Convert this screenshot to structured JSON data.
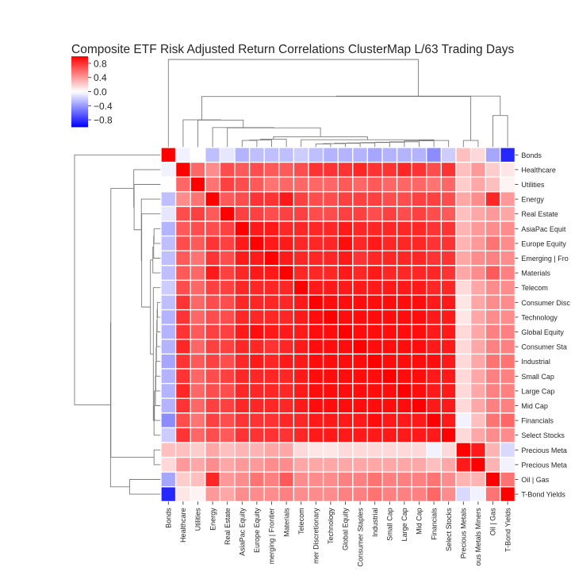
{
  "chart_data": {
    "type": "heatmap",
    "title": "Composite ETF Risk Adjusted Return Correlations ClusterMap L/63 Trading Days",
    "labels": [
      "Bonds",
      "Healthcare",
      "Utilities",
      "Energy",
      "Real Estate",
      "AsiaPac Equity",
      "Europe Equity",
      "Emerging | Frontier",
      "Materials",
      "Telecom",
      "Consumer Discretionary",
      "Technology",
      "Global Equity",
      "Consumer Staples",
      "Industrial",
      "Small Cap",
      "Large Cap",
      "Mid Cap",
      "Financials",
      "Select Stocks",
      "Precious Metals",
      "Precious Metals Miners",
      "Oil | Gas",
      "T-Bond Yields"
    ],
    "row_labels_visible": [
      "Bonds",
      "Healthcare",
      "Utilities",
      "Energy",
      "Real Estate",
      "AsiaPac Equit",
      "Europe Equity",
      "Emerging | Fro",
      "Materials",
      "Telecom",
      "Consumer Disc",
      "Technology",
      "Global Equity",
      "Consumer Sta",
      "Industrial",
      "Small Cap",
      "Large Cap",
      "Mid Cap",
      "Financials",
      "Select Stocks",
      "Precious Meta",
      "Precious Meta",
      "Oil | Gas",
      "T-Bond Yields"
    ],
    "col_labels_visible": [
      "Bonds",
      "Healthcare",
      "Utilities",
      "Energy",
      "Real Estate",
      "AsiaPac Equity",
      "Europe Equity",
      "merging | Frontier",
      "Materials",
      "Telecom",
      "mer Discretionary",
      "Technology",
      "Global Equity",
      "Consumer Staples",
      "Industrial",
      "Small Cap",
      "Large Cap",
      "Mid Cap",
      "Financials",
      "Select Stocks",
      "Precious Metals",
      "ous Metals Miners",
      "Oil | Gas",
      "T-Bond Yields"
    ],
    "matrix": [
      [
        1.0,
        -0.05,
        0.0,
        -0.25,
        -0.1,
        -0.3,
        -0.25,
        -0.25,
        -0.25,
        -0.2,
        -0.25,
        -0.3,
        -0.3,
        -0.3,
        -0.35,
        -0.3,
        -0.3,
        -0.3,
        -0.45,
        -0.2,
        0.25,
        0.15,
        -0.35,
        -0.85
      ],
      [
        -0.05,
        1.0,
        0.6,
        0.45,
        0.7,
        0.65,
        0.7,
        0.65,
        0.65,
        0.7,
        0.8,
        0.8,
        0.8,
        0.85,
        0.8,
        0.8,
        0.85,
        0.8,
        0.7,
        0.8,
        0.25,
        0.4,
        0.2,
        0.1
      ],
      [
        0.0,
        0.6,
        1.0,
        0.55,
        0.75,
        0.7,
        0.65,
        0.55,
        0.6,
        0.6,
        0.6,
        0.6,
        0.65,
        0.6,
        0.65,
        0.6,
        0.6,
        0.6,
        0.55,
        0.6,
        0.2,
        0.35,
        0.25,
        0.05
      ],
      [
        -0.25,
        0.45,
        0.55,
        1.0,
        0.65,
        0.7,
        0.8,
        0.8,
        0.9,
        0.75,
        0.7,
        0.7,
        0.75,
        0.75,
        0.75,
        0.7,
        0.7,
        0.75,
        0.75,
        0.7,
        0.35,
        0.45,
        0.85,
        0.4
      ],
      [
        -0.1,
        0.7,
        0.75,
        0.65,
        1.0,
        0.75,
        0.75,
        0.7,
        0.75,
        0.75,
        0.7,
        0.7,
        0.75,
        0.75,
        0.7,
        0.75,
        0.7,
        0.75,
        0.7,
        0.65,
        0.25,
        0.35,
        0.4,
        0.35
      ],
      [
        -0.3,
        0.65,
        0.7,
        0.7,
        0.75,
        1.0,
        0.9,
        0.9,
        0.85,
        0.85,
        0.85,
        0.85,
        0.9,
        0.85,
        0.85,
        0.85,
        0.85,
        0.85,
        0.8,
        0.8,
        0.3,
        0.4,
        0.45,
        0.45
      ],
      [
        -0.25,
        0.7,
        0.65,
        0.8,
        0.75,
        0.9,
        1.0,
        0.9,
        0.9,
        0.85,
        0.85,
        0.85,
        0.95,
        0.85,
        0.9,
        0.85,
        0.85,
        0.85,
        0.8,
        0.8,
        0.3,
        0.4,
        0.55,
        0.45
      ],
      [
        -0.25,
        0.65,
        0.55,
        0.8,
        0.7,
        0.9,
        0.9,
        1.0,
        0.9,
        0.85,
        0.85,
        0.85,
        0.9,
        0.8,
        0.85,
        0.85,
        0.85,
        0.85,
        0.8,
        0.8,
        0.35,
        0.45,
        0.5,
        0.45
      ],
      [
        -0.25,
        0.65,
        0.6,
        0.9,
        0.75,
        0.85,
        0.9,
        0.9,
        1.0,
        0.85,
        0.85,
        0.85,
        0.9,
        0.85,
        0.9,
        0.85,
        0.85,
        0.85,
        0.85,
        0.8,
        0.35,
        0.45,
        0.65,
        0.5
      ],
      [
        -0.2,
        0.7,
        0.6,
        0.75,
        0.75,
        0.85,
        0.85,
        0.85,
        0.85,
        1.0,
        0.9,
        0.9,
        0.9,
        0.9,
        0.9,
        0.9,
        0.9,
        0.9,
        0.85,
        0.85,
        0.15,
        0.35,
        0.45,
        0.45
      ],
      [
        -0.25,
        0.8,
        0.6,
        0.7,
        0.7,
        0.85,
        0.85,
        0.85,
        0.85,
        0.9,
        1.0,
        0.95,
        0.95,
        0.95,
        0.95,
        0.95,
        0.95,
        0.95,
        0.9,
        0.9,
        0.1,
        0.35,
        0.45,
        0.45
      ],
      [
        -0.3,
        0.8,
        0.6,
        0.7,
        0.7,
        0.85,
        0.85,
        0.85,
        0.85,
        0.9,
        0.95,
        1.0,
        0.95,
        0.95,
        0.95,
        0.95,
        0.95,
        0.95,
        0.9,
        0.9,
        0.1,
        0.35,
        0.45,
        0.45
      ],
      [
        -0.3,
        0.8,
        0.65,
        0.75,
        0.75,
        0.9,
        0.95,
        0.9,
        0.9,
        0.9,
        0.95,
        0.95,
        1.0,
        0.95,
        0.95,
        0.95,
        0.95,
        0.95,
        0.9,
        0.9,
        0.15,
        0.35,
        0.5,
        0.5
      ],
      [
        -0.3,
        0.85,
        0.6,
        0.75,
        0.75,
        0.85,
        0.85,
        0.8,
        0.85,
        0.9,
        0.95,
        0.95,
        0.95,
        1.0,
        0.95,
        0.95,
        0.95,
        0.95,
        0.9,
        0.9,
        0.15,
        0.35,
        0.5,
        0.5
      ],
      [
        -0.35,
        0.8,
        0.65,
        0.75,
        0.7,
        0.85,
        0.9,
        0.85,
        0.9,
        0.9,
        0.95,
        0.95,
        0.95,
        0.95,
        1.0,
        0.95,
        0.95,
        0.95,
        0.95,
        0.9,
        0.15,
        0.35,
        0.55,
        0.55
      ],
      [
        -0.3,
        0.8,
        0.6,
        0.7,
        0.75,
        0.85,
        0.85,
        0.85,
        0.85,
        0.9,
        0.95,
        0.95,
        0.95,
        0.95,
        0.95,
        1.0,
        0.95,
        0.95,
        0.9,
        0.9,
        0.15,
        0.35,
        0.5,
        0.5
      ],
      [
        -0.3,
        0.85,
        0.6,
        0.7,
        0.7,
        0.85,
        0.85,
        0.85,
        0.85,
        0.9,
        0.95,
        0.95,
        0.95,
        0.95,
        0.95,
        0.95,
        1.0,
        0.95,
        0.9,
        0.9,
        0.15,
        0.35,
        0.5,
        0.5
      ],
      [
        -0.3,
        0.8,
        0.6,
        0.75,
        0.75,
        0.85,
        0.85,
        0.85,
        0.85,
        0.9,
        0.95,
        0.95,
        0.95,
        0.95,
        0.95,
        0.95,
        0.95,
        1.0,
        0.9,
        0.9,
        0.15,
        0.35,
        0.5,
        0.5
      ],
      [
        -0.45,
        0.7,
        0.55,
        0.75,
        0.7,
        0.8,
        0.8,
        0.8,
        0.85,
        0.85,
        0.9,
        0.9,
        0.9,
        0.9,
        0.95,
        0.9,
        0.9,
        0.9,
        1.0,
        0.9,
        -0.05,
        0.25,
        0.55,
        0.6
      ],
      [
        -0.2,
        0.8,
        0.6,
        0.7,
        0.65,
        0.8,
        0.8,
        0.8,
        0.8,
        0.85,
        0.9,
        0.9,
        0.9,
        0.9,
        0.9,
        0.9,
        0.9,
        0.9,
        0.9,
        1.0,
        0.15,
        0.35,
        0.45,
        0.45
      ],
      [
        0.25,
        0.25,
        0.2,
        0.35,
        0.25,
        0.3,
        0.3,
        0.35,
        0.35,
        0.15,
        0.1,
        0.1,
        0.15,
        0.15,
        0.15,
        0.15,
        0.15,
        0.15,
        -0.05,
        0.15,
        1.0,
        0.9,
        0.3,
        -0.15
      ],
      [
        0.15,
        0.4,
        0.35,
        0.45,
        0.35,
        0.4,
        0.4,
        0.45,
        0.45,
        0.35,
        0.35,
        0.35,
        0.35,
        0.35,
        0.35,
        0.35,
        0.35,
        0.35,
        0.25,
        0.35,
        0.9,
        1.0,
        0.3,
        -0.05
      ],
      [
        -0.35,
        0.2,
        0.25,
        0.85,
        0.4,
        0.45,
        0.55,
        0.5,
        0.65,
        0.45,
        0.45,
        0.45,
        0.5,
        0.5,
        0.55,
        0.5,
        0.5,
        0.5,
        0.55,
        0.45,
        0.3,
        0.3,
        1.0,
        0.55
      ],
      [
        -0.85,
        0.1,
        0.05,
        0.4,
        0.35,
        0.45,
        0.45,
        0.45,
        0.5,
        0.45,
        0.45,
        0.45,
        0.5,
        0.5,
        0.55,
        0.5,
        0.5,
        0.5,
        0.6,
        0.45,
        -0.15,
        -0.05,
        0.55,
        1.0
      ]
    ],
    "colorbar": {
      "colormap": "bwr",
      "range": [
        -1,
        1
      ],
      "ticks": [
        0.8,
        0.4,
        0.0,
        -0.4,
        -0.8
      ],
      "tick_labels": [
        "0.8",
        "0.4",
        "0.0",
        "−0.4",
        "−0.8"
      ]
    },
    "dendrogram_top": "hierarchical clustering of columns",
    "dendrogram_left": "hierarchical clustering of rows"
  }
}
